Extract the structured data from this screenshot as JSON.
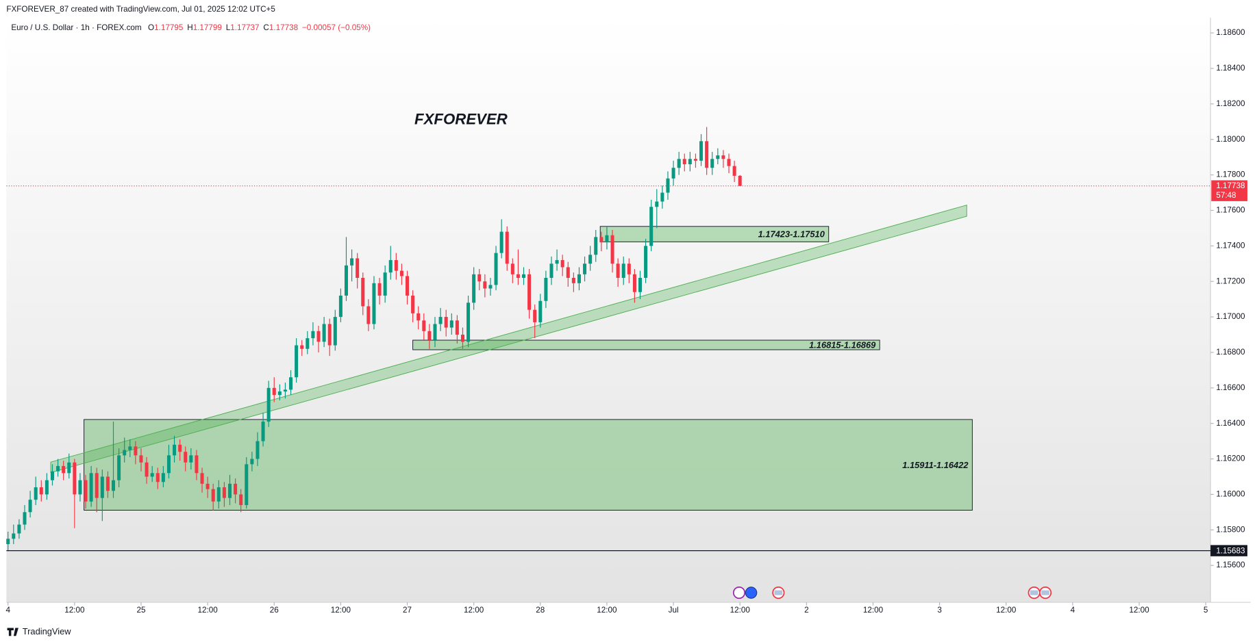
{
  "header": {
    "text": "FXFOREVER_87 created with TradingView.com, Jul 01, 2025 12:02 UTC+5"
  },
  "legend": {
    "symbol": "Euro / U.S. Dollar · 1h · FOREX.com",
    "items": [
      {
        "label": "O",
        "value": "1.17795"
      },
      {
        "label": "H",
        "value": "1.17799"
      },
      {
        "label": "L",
        "value": "1.17737"
      },
      {
        "label": "C",
        "value": "1.17738"
      }
    ],
    "change": "−0.00057 (−0.05%)"
  },
  "annotation": "FXFOREVER",
  "footer": {
    "brand": "TradingView"
  },
  "chart_data": {
    "type": "candlestick",
    "up_color": "#089981",
    "down_color": "#f23645",
    "xlim": [
      -0.29,
      216.86
    ],
    "xticks": [
      {
        "value": 0,
        "label": "4"
      },
      {
        "value": 12,
        "label": "12:00"
      },
      {
        "value": 24,
        "label": "25"
      },
      {
        "value": 36,
        "label": "12:00"
      },
      {
        "value": 48,
        "label": "26"
      },
      {
        "value": 60,
        "label": "12:00"
      },
      {
        "value": 72,
        "label": "27"
      },
      {
        "value": 84,
        "label": "12:00"
      },
      {
        "value": 96,
        "label": "28"
      },
      {
        "value": 108,
        "label": "12:00"
      },
      {
        "value": 120,
        "label": "Jul"
      },
      {
        "value": 132,
        "label": "12:00"
      },
      {
        "value": 144,
        "label": "2"
      },
      {
        "value": 156,
        "label": "12:00"
      },
      {
        "value": 168,
        "label": "3"
      },
      {
        "value": 180,
        "label": "12:00"
      },
      {
        "value": 192,
        "label": "4"
      },
      {
        "value": 204,
        "label": "12:00"
      },
      {
        "value": 216,
        "label": "5"
      }
    ],
    "ylim": [
      1.15392,
      1.18686
    ],
    "yticks": [
      {
        "value": 1.186,
        "label": "1.18600"
      },
      {
        "value": 1.184,
        "label": "1.18400"
      },
      {
        "value": 1.182,
        "label": "1.18200"
      },
      {
        "value": 1.18,
        "label": "1.18000"
      },
      {
        "value": 1.178,
        "label": "1.17800"
      },
      {
        "value": 1.176,
        "label": "1.17600"
      },
      {
        "value": 1.174,
        "label": "1.17400"
      },
      {
        "value": 1.172,
        "label": "1.17200"
      },
      {
        "value": 1.17,
        "label": "1.17000"
      },
      {
        "value": 1.168,
        "label": "1.16800"
      },
      {
        "value": 1.166,
        "label": "1.16600"
      },
      {
        "value": 1.164,
        "label": "1.16400"
      },
      {
        "value": 1.162,
        "label": "1.16200"
      },
      {
        "value": 1.16,
        "label": "1.16000"
      },
      {
        "value": 1.158,
        "label": "1.15800"
      },
      {
        "value": 1.156,
        "label": "1.15600"
      }
    ],
    "open": [
      1.1572,
      1.1575,
      1.1578,
      1.1583,
      1.159,
      1.1597,
      1.1604,
      1.16,
      1.1608,
      1.1613,
      1.1616,
      1.1612,
      1.1618,
      1.16,
      1.1608,
      1.1596,
      1.1612,
      1.1598,
      1.161,
      1.1602,
      1.1608,
      1.1622,
      1.1625,
      1.1627,
      1.1622,
      1.1618,
      1.161,
      1.1612,
      1.1607,
      1.1612,
      1.1622,
      1.1628,
      1.1624,
      1.1618,
      1.1622,
      1.1612,
      1.1606,
      1.1603,
      1.1596,
      1.1604,
      1.1598,
      1.1606,
      1.16,
      1.1594,
      1.1617,
      1.162,
      1.163,
      1.1641,
      1.166,
      1.1656,
      1.1658,
      1.1659,
      1.1666,
      1.1684,
      1.1682,
      1.1688,
      1.1692,
      1.1686,
      1.1696,
      1.1684,
      1.17,
      1.1712,
      1.1729,
      1.1733,
      1.1722,
      1.1706,
      1.1696,
      1.1719,
      1.1712,
      1.1725,
      1.1732,
      1.1726,
      1.1723,
      1.1712,
      1.1702,
      1.1698,
      1.1692,
      1.1687,
      1.1696,
      1.17,
      1.1694,
      1.1698,
      1.169,
      1.1686,
      1.1708,
      1.1724,
      1.172,
      1.1716,
      1.1718,
      1.1736,
      1.1748,
      1.173,
      1.1724,
      1.1722,
      1.1724,
      1.1704,
      1.1697,
      1.1709,
      1.1722,
      1.173,
      1.1732,
      1.1728,
      1.1722,
      1.1719,
      1.1724,
      1.173,
      1.1735,
      1.1745,
      1.1742,
      1.1746,
      1.173,
      1.1722,
      1.173,
      1.1724,
      1.1714,
      1.1722,
      1.174,
      1.1762,
      1.1765,
      1.177,
      1.1778,
      1.1784,
      1.1789,
      1.1786,
      1.1789,
      1.1788,
      1.1799,
      1.1784,
      1.1789,
      1.1791,
      1.1789,
      1.1785,
      1.17795
    ],
    "high": [
      1.1579,
      1.1583,
      1.1586,
      1.1594,
      1.1602,
      1.161,
      1.1608,
      1.1612,
      1.1617,
      1.162,
      1.1619,
      1.1623,
      1.162,
      1.1612,
      1.1611,
      1.1616,
      1.1615,
      1.1614,
      1.1613,
      1.1641,
      1.1626,
      1.1632,
      1.1631,
      1.163,
      1.1626,
      1.1621,
      1.1616,
      1.1615,
      1.1616,
      1.1628,
      1.1633,
      1.1631,
      1.1627,
      1.1626,
      1.1625,
      1.1615,
      1.161,
      1.1606,
      1.1608,
      1.1607,
      1.1611,
      1.1609,
      1.1603,
      1.1621,
      1.1624,
      1.1635,
      1.1646,
      1.1664,
      1.1666,
      1.1662,
      1.1663,
      1.167,
      1.1688,
      1.1687,
      1.1692,
      1.1697,
      1.1695,
      1.17,
      1.1699,
      1.1704,
      1.1716,
      1.1745,
      1.1738,
      1.1736,
      1.1725,
      1.171,
      1.1723,
      1.1722,
      1.1729,
      1.174,
      1.1736,
      1.173,
      1.1726,
      1.1715,
      1.1706,
      1.1702,
      1.1696,
      1.17,
      1.1705,
      1.1704,
      1.1702,
      1.1701,
      1.1694,
      1.1712,
      1.1728,
      1.1727,
      1.1724,
      1.1722,
      1.174,
      1.1755,
      1.1751,
      1.1733,
      1.1738,
      1.1728,
      1.1727,
      1.1707,
      1.1713,
      1.1726,
      1.1734,
      1.1738,
      1.1735,
      1.1731,
      1.1725,
      1.1728,
      1.1734,
      1.174,
      1.1749,
      1.1748,
      1.1751,
      1.1749,
      1.1733,
      1.1734,
      1.1733,
      1.1727,
      1.1726,
      1.1744,
      1.1766,
      1.1772,
      1.1774,
      1.1782,
      1.1788,
      1.1793,
      1.1792,
      1.1793,
      1.1792,
      1.1803,
      1.1807,
      1.1793,
      1.1795,
      1.1794,
      1.1792,
      1.1788,
      1.17799
    ],
    "low": [
      1.1568,
      1.1572,
      1.1575,
      1.158,
      1.1587,
      1.1594,
      1.1596,
      1.1597,
      1.1605,
      1.161,
      1.1608,
      1.1609,
      1.1581,
      1.1596,
      1.1592,
      1.1593,
      1.159,
      1.1585,
      1.1598,
      1.1598,
      1.1604,
      1.1618,
      1.1621,
      1.1617,
      1.1613,
      1.1606,
      1.1607,
      1.1603,
      1.1604,
      1.1609,
      1.1618,
      1.1619,
      1.1613,
      1.1614,
      1.1608,
      1.1601,
      1.1598,
      1.1591,
      1.1592,
      1.1593,
      1.1594,
      1.1595,
      1.159,
      1.1592,
      1.1613,
      1.1616,
      1.1627,
      1.1638,
      1.1652,
      1.1653,
      1.1654,
      1.1656,
      1.1663,
      1.1678,
      1.1679,
      1.1684,
      1.168,
      1.1683,
      1.1678,
      1.1681,
      1.1697,
      1.1709,
      1.172,
      1.1716,
      1.1701,
      1.1692,
      1.1693,
      1.1707,
      1.1708,
      1.1721,
      1.1721,
      1.1718,
      1.1707,
      1.1697,
      1.1693,
      1.1687,
      1.1682,
      1.1683,
      1.1692,
      1.1689,
      1.169,
      1.1685,
      1.1682,
      1.1683,
      1.1704,
      1.1715,
      1.1711,
      1.1712,
      1.1715,
      1.1733,
      1.1726,
      1.1719,
      1.1718,
      1.1718,
      1.1699,
      1.1688,
      1.1694,
      1.1705,
      1.1718,
      1.1726,
      1.1723,
      1.1717,
      1.1714,
      1.1715,
      1.172,
      1.1726,
      1.1731,
      1.1737,
      1.1738,
      1.1725,
      1.1717,
      1.1718,
      1.1719,
      1.1708,
      1.171,
      1.1719,
      1.1737,
      1.175,
      1.1761,
      1.1766,
      1.1774,
      1.178,
      1.1782,
      1.1782,
      1.1784,
      1.1785,
      1.178,
      1.178,
      1.1786,
      1.1784,
      1.1781,
      1.1776,
      1.17737
    ],
    "close": [
      1.1575,
      1.1578,
      1.1583,
      1.159,
      1.1597,
      1.1604,
      1.16,
      1.1608,
      1.1613,
      1.1616,
      1.1612,
      1.1618,
      1.16,
      1.1608,
      1.1596,
      1.1612,
      1.1598,
      1.161,
      1.1602,
      1.1608,
      1.1622,
      1.1625,
      1.1627,
      1.1622,
      1.1618,
      1.161,
      1.1612,
      1.1607,
      1.1612,
      1.1622,
      1.1628,
      1.1624,
      1.1618,
      1.1622,
      1.1612,
      1.1606,
      1.1603,
      1.1596,
      1.1604,
      1.1598,
      1.1606,
      1.16,
      1.1594,
      1.1617,
      1.162,
      1.163,
      1.1641,
      1.166,
      1.1656,
      1.1658,
      1.1659,
      1.1666,
      1.1684,
      1.1682,
      1.1688,
      1.1692,
      1.1686,
      1.1696,
      1.1684,
      1.17,
      1.1712,
      1.1729,
      1.1733,
      1.1722,
      1.1706,
      1.1696,
      1.1719,
      1.1712,
      1.1725,
      1.1732,
      1.1726,
      1.1723,
      1.1712,
      1.1702,
      1.1698,
      1.1692,
      1.1687,
      1.1696,
      1.17,
      1.1694,
      1.1698,
      1.169,
      1.1686,
      1.1708,
      1.1724,
      1.172,
      1.1716,
      1.1718,
      1.1736,
      1.1748,
      1.173,
      1.1724,
      1.1722,
      1.1724,
      1.1704,
      1.1697,
      1.1709,
      1.1722,
      1.173,
      1.1732,
      1.1728,
      1.1722,
      1.1719,
      1.1724,
      1.173,
      1.1735,
      1.1745,
      1.1742,
      1.1746,
      1.173,
      1.1722,
      1.173,
      1.1724,
      1.1714,
      1.1722,
      1.174,
      1.1762,
      1.1765,
      1.177,
      1.1778,
      1.1784,
      1.1789,
      1.1786,
      1.1789,
      1.1788,
      1.1799,
      1.1784,
      1.1789,
      1.1791,
      1.1789,
      1.1785,
      1.17795,
      1.17738
    ],
    "last_price": {
      "value": 1.17738,
      "label": "1.17738",
      "countdown": "57:48",
      "color": "#f23645"
    },
    "hline": {
      "value": 1.15683,
      "label": "1.15683"
    },
    "zones": [
      {
        "low": 1.17423,
        "high": 1.1751,
        "label": "1.17423-1.17510",
        "from": 106.8,
        "to": 148.0
      },
      {
        "low": 1.16815,
        "high": 1.16869,
        "label": "1.16815-1.16869",
        "from": 73.0,
        "to": 157.2
      },
      {
        "low": 1.15911,
        "high": 1.16422,
        "label": "1.15911-1.16422",
        "from": 13.7,
        "to": 173.9
      }
    ],
    "channel": {
      "x": [
        7.7,
        172.9
      ],
      "upper": [
        1.16182,
        1.1763
      ],
      "lower": [
        1.16123,
        1.17567
      ]
    }
  }
}
